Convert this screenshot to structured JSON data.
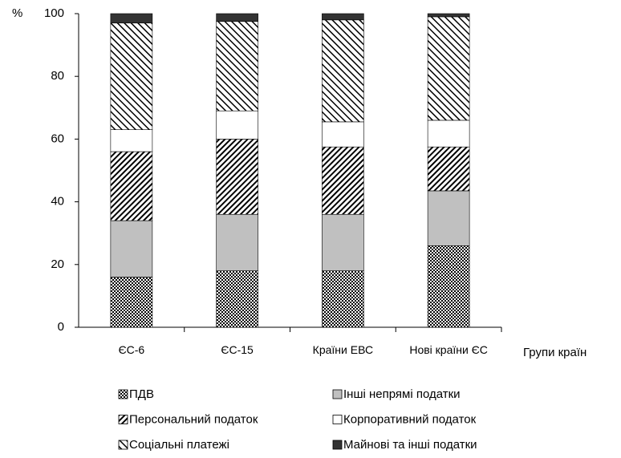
{
  "chart_data": {
    "type": "stacked-bar",
    "y_label": "%",
    "x_label": "Групи країн",
    "categories": [
      "ЄС-6",
      "ЄС-15",
      "Країни ЕВС",
      "Нові країни ЄС"
    ],
    "series": [
      {
        "name": "ПДВ",
        "color": "#000000",
        "pattern": "checker",
        "values": [
          16,
          18,
          18,
          26
        ]
      },
      {
        "name": "Інші непрямі податки",
        "color": "#c0c0c0",
        "pattern": "solid",
        "values": [
          18,
          18,
          18,
          17.5
        ]
      },
      {
        "name": "Персональний податок",
        "color": "#000000",
        "pattern": "hatch-back",
        "values": [
          22,
          24,
          21.5,
          14
        ]
      },
      {
        "name": "Корпоративний податок",
        "color": "#ffffff",
        "pattern": "solid",
        "values": [
          7,
          9,
          8,
          8.5
        ]
      },
      {
        "name": "Соціальні платежі",
        "color": "#000000",
        "pattern": "hatch-forward",
        "values": [
          34,
          28.5,
          32.5,
          33
        ]
      },
      {
        "name": "Майнові та інші податки",
        "color": "#333333",
        "pattern": "solid",
        "values": [
          3,
          2.5,
          2,
          1
        ]
      }
    ],
    "ylim": [
      0,
      100
    ],
    "yticks": [
      0,
      20,
      40,
      60,
      80,
      100
    ]
  }
}
